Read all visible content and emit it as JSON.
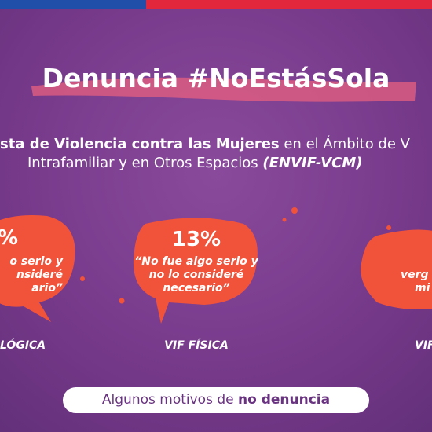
{
  "header": {
    "title": "Denuncia #NoEstásSola"
  },
  "subtitle": {
    "line1_bold": "sta de Violencia contra las Mujeres",
    "line1_rest": " en el Ámbito de V",
    "line2": "Intrafamiliar y en Otros Espacios ",
    "line2_bold": "(ENVIF-VCM)"
  },
  "cards": [
    {
      "percent": "%",
      "lines": [
        "o serio y",
        "nsideré",
        "ario”"
      ],
      "label": "LÓGICA"
    },
    {
      "percent": "13%",
      "lines": [
        "“No fue algo serio y",
        "no lo consideré",
        "necesario”"
      ],
      "label": "VIF FÍSICA"
    },
    {
      "percent": "",
      "lines": [
        "verg",
        "mi"
      ],
      "label": "VIF"
    }
  ],
  "footer": {
    "text": "Algunos motivos de ",
    "bold": "no denuncia"
  }
}
